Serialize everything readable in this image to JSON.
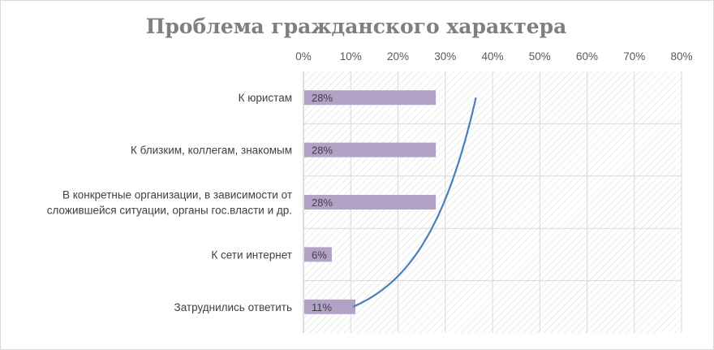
{
  "chart_data": {
    "type": "bar",
    "orientation": "horizontal",
    "title": "Проблема гражданского характера",
    "xlabel": "",
    "ylabel": "",
    "xlim": [
      0,
      80
    ],
    "x_ticks": [
      "0%",
      "10%",
      "20%",
      "30%",
      "40%",
      "50%",
      "60%",
      "70%",
      "80%"
    ],
    "x_axis_position": "top",
    "grid": true,
    "plot_area_fill": "diagonal-hatch",
    "legend": "none",
    "categories": [
      [
        "К юристам"
      ],
      [
        "К близким, коллегам, знакомым"
      ],
      [
        "В конкретные организации, в зависимости от",
        "сложившейся ситуации, органы гос.власти и др."
      ],
      [
        "К сети интернет"
      ],
      [
        "Затруднились ответить"
      ]
    ],
    "series": [
      {
        "values": [
          28,
          28,
          28,
          6,
          11
        ],
        "data_labels": [
          "28%",
          "28%",
          "28%",
          "6%",
          "11%"
        ],
        "color": "#b3a2c7"
      }
    ],
    "trend_curve": {
      "color": "#4a7ebb",
      "shape": "logarithmic",
      "from_value": 36.5,
      "to_value": 10.5
    }
  }
}
